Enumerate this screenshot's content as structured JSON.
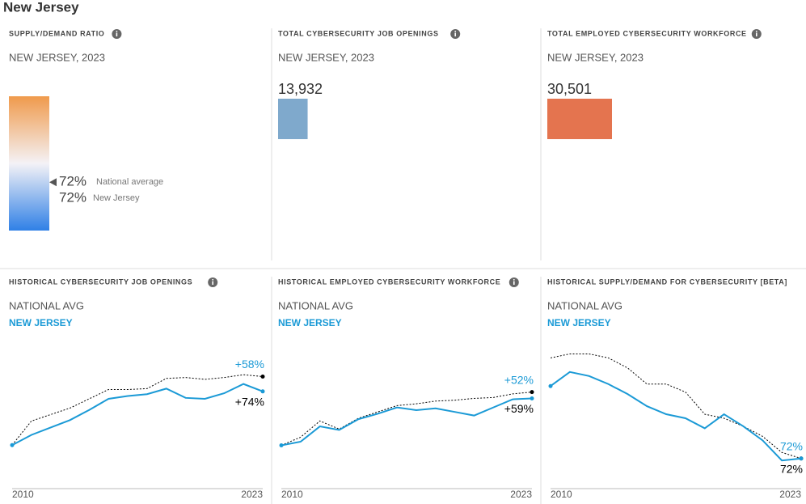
{
  "title": "New Jersey",
  "summary": [
    {
      "title": "SUPPLY/DEMAND RATIO",
      "subtitle": "NEW JERSEY, 2023",
      "ylim": [
        0,
        200
      ],
      "markers": [
        {
          "name": "National average",
          "value": 72,
          "label": "72%"
        },
        {
          "name": "New Jersey",
          "value": 72,
          "label": "72%"
        }
      ]
    },
    {
      "title": "TOTAL CYBERSECURITY JOB OPENINGS",
      "subtitle": "NEW JERSEY, 2023",
      "value": 13932,
      "value_label": "13,932",
      "color": "#7fa9cc"
    },
    {
      "title": "TOTAL EMPLOYED CYBERSECURITY WORKFORCE",
      "subtitle": "NEW JERSEY, 2023",
      "value": 30501,
      "value_label": "30,501",
      "color": "#e4744f"
    }
  ],
  "chart_data": [
    {
      "type": "line",
      "title": "HISTORICAL CYBERSECURITY JOB OPENINGS",
      "x": [
        2010,
        2011,
        2012,
        2013,
        2014,
        2015,
        2016,
        2017,
        2018,
        2019,
        2020,
        2021,
        2022,
        2023
      ],
      "xlim": [
        2010,
        2023
      ],
      "xticks": [
        2010,
        2023
      ],
      "ylim": [
        -47,
        105
      ],
      "series": [
        {
          "name": "NATIONAL AVG",
          "color": "#000000",
          "dash": true,
          "values": [
            0,
            26,
            33,
            40,
            50,
            60,
            60,
            61,
            72,
            73,
            71,
            73,
            76,
            74
          ],
          "value_labels": [
            null,
            null,
            null,
            null,
            null,
            null,
            null,
            null,
            null,
            null,
            null,
            null,
            null,
            "+74%"
          ]
        },
        {
          "name": "NEW JERSEY",
          "color": "#1b9ad6",
          "dash": false,
          "values": [
            0,
            11,
            19,
            27,
            38,
            50,
            53,
            55,
            61,
            51,
            50,
            56,
            66,
            58
          ],
          "value_labels": [
            null,
            null,
            null,
            null,
            null,
            null,
            null,
            null,
            null,
            null,
            null,
            null,
            null,
            "+58%"
          ]
        }
      ]
    },
    {
      "type": "line",
      "title": "HISTORICAL EMPLOYED CYBERSECURITY WORKFORCE",
      "x": [
        2010,
        2011,
        2012,
        2013,
        2014,
        2015,
        2016,
        2017,
        2018,
        2019,
        2020,
        2021,
        2022,
        2023
      ],
      "xlim": [
        2010,
        2023
      ],
      "xticks": [
        2010,
        2023
      ],
      "ylim": [
        -48,
        108
      ],
      "series": [
        {
          "name": "NATIONAL AVG",
          "color": "#000000",
          "dash": true,
          "values": [
            0,
            9,
            27,
            18,
            30,
            37,
            44,
            46,
            49,
            50,
            52,
            53,
            57,
            59
          ],
          "value_labels": [
            null,
            null,
            null,
            null,
            null,
            null,
            null,
            null,
            null,
            null,
            null,
            null,
            null,
            "+59%"
          ]
        },
        {
          "name": "NEW JERSEY",
          "color": "#1b9ad6",
          "dash": false,
          "values": [
            0,
            4,
            21,
            17,
            29,
            35,
            42,
            39,
            41,
            37,
            33,
            42,
            51,
            52
          ],
          "value_labels": [
            null,
            null,
            null,
            null,
            null,
            null,
            null,
            null,
            null,
            null,
            null,
            null,
            null,
            "+52%"
          ]
        }
      ]
    },
    {
      "type": "line",
      "title": "HISTORICAL SUPPLY/DEMAND FOR CYBERSECURITY [BETA]",
      "x": [
        2010,
        2011,
        2012,
        2013,
        2014,
        2015,
        2016,
        2017,
        2018,
        2019,
        2020,
        2021,
        2022,
        2023
      ],
      "xlim": [
        2010,
        2023
      ],
      "xticks": [
        2010,
        2023
      ],
      "ylim": [
        57,
        127
      ],
      "series": [
        {
          "name": "NATIONAL AVG",
          "color": "#000000",
          "dash": true,
          "values": [
            122,
            124,
            124,
            122,
            117,
            109,
            109,
            105,
            94,
            92,
            88,
            83,
            75,
            72
          ],
          "value_labels": [
            null,
            null,
            null,
            null,
            null,
            null,
            null,
            null,
            null,
            null,
            null,
            null,
            null,
            "72%"
          ]
        },
        {
          "name": "NEW JERSEY",
          "color": "#1b9ad6",
          "dash": false,
          "values": [
            108,
            115,
            113,
            109,
            104,
            98,
            94,
            92,
            87,
            94,
            88,
            81,
            71,
            72
          ],
          "value_labels": [
            null,
            null,
            null,
            null,
            null,
            null,
            null,
            null,
            null,
            null,
            null,
            null,
            null,
            "72%"
          ]
        }
      ]
    }
  ]
}
